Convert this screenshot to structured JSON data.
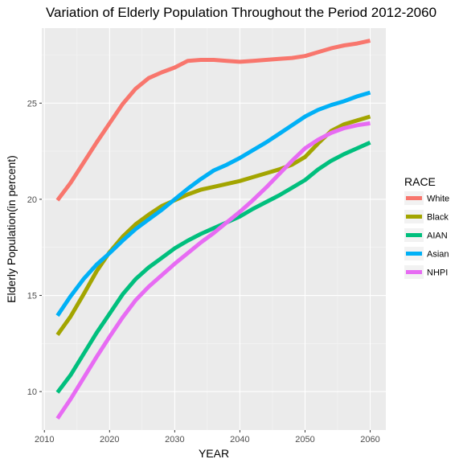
{
  "chart_data": {
    "type": "line",
    "title": "Variation of Elderly Population Throughout the Period 2012-2060",
    "xlabel": "YEAR",
    "ylabel": "Elderly Population(in percent)",
    "xlim": [
      2009.6,
      2062.4
    ],
    "ylim": [
      8.0,
      28.9
    ],
    "x_ticks": [
      2010,
      2020,
      2030,
      2040,
      2050,
      2060
    ],
    "y_ticks": [
      10,
      15,
      20,
      25
    ],
    "grid": true,
    "legend": {
      "title": "RACE",
      "position": "right"
    },
    "x": [
      2012,
      2014,
      2016,
      2018,
      2020,
      2022,
      2024,
      2026,
      2028,
      2030,
      2032,
      2034,
      2036,
      2038,
      2040,
      2042,
      2044,
      2046,
      2048,
      2050,
      2052,
      2054,
      2056,
      2058,
      2060
    ],
    "series": [
      {
        "name": "White",
        "color": "#F8766D",
        "values": [
          19.95,
          20.85,
          21.9,
          22.95,
          23.95,
          24.95,
          25.75,
          26.3,
          26.6,
          26.85,
          27.2,
          27.25,
          27.25,
          27.2,
          27.15,
          27.2,
          27.25,
          27.3,
          27.35,
          27.45,
          27.65,
          27.85,
          28.0,
          28.1,
          28.25
        ]
      },
      {
        "name": "Black",
        "color": "#A3A500",
        "values": [
          12.95,
          13.9,
          15.05,
          16.25,
          17.25,
          18.05,
          18.7,
          19.2,
          19.65,
          19.95,
          20.25,
          20.5,
          20.65,
          20.8,
          20.95,
          21.15,
          21.35,
          21.55,
          21.8,
          22.2,
          22.9,
          23.55,
          23.9,
          24.1,
          24.3
        ]
      },
      {
        "name": "AIAN",
        "color": "#00BF7D",
        "values": [
          9.95,
          10.85,
          11.95,
          13.05,
          14.05,
          15.05,
          15.85,
          16.45,
          16.95,
          17.45,
          17.85,
          18.2,
          18.5,
          18.8,
          19.1,
          19.5,
          19.85,
          20.2,
          20.6,
          21.0,
          21.55,
          22.0,
          22.35,
          22.65,
          22.95
        ]
      },
      {
        "name": "Asian",
        "color": "#00B0F6",
        "values": [
          13.95,
          14.95,
          15.85,
          16.6,
          17.2,
          17.85,
          18.45,
          18.95,
          19.45,
          20.0,
          20.55,
          21.05,
          21.5,
          21.8,
          22.15,
          22.55,
          22.95,
          23.4,
          23.85,
          24.3,
          24.65,
          24.9,
          25.1,
          25.35,
          25.55
        ]
      },
      {
        "name": "NHPI",
        "color": "#E76BF3",
        "values": [
          8.6,
          9.6,
          10.7,
          11.8,
          12.85,
          13.85,
          14.75,
          15.45,
          16.05,
          16.65,
          17.2,
          17.75,
          18.25,
          18.8,
          19.35,
          19.95,
          20.6,
          21.3,
          22.0,
          22.65,
          23.1,
          23.45,
          23.7,
          23.85,
          23.95
        ]
      }
    ]
  }
}
